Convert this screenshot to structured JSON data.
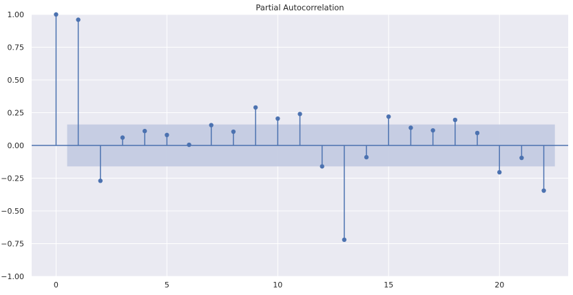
{
  "chart_data": {
    "type": "stem",
    "title": "Partial Autocorrelation",
    "xlabel": "",
    "ylabel": "",
    "xlim": [
      -1.1,
      23.1
    ],
    "ylim": [
      -1.0,
      1.0
    ],
    "xticks": [
      0,
      5,
      10,
      15,
      20
    ],
    "xtick_labels": [
      "0",
      "5",
      "10",
      "15",
      "20"
    ],
    "yticks": [
      -1.0,
      -0.75,
      -0.5,
      -0.25,
      0.0,
      0.25,
      0.5,
      0.75,
      1.0
    ],
    "ytick_labels": [
      "−1.00",
      "−0.75",
      "−0.50",
      "−0.25",
      "0.00",
      "0.25",
      "0.50",
      "0.75",
      "1.00"
    ],
    "grid": true,
    "confidence_band": {
      "x_start": 0.5,
      "x_end": 22.5,
      "lower": -0.16,
      "upper": 0.16
    },
    "x": [
      0,
      1,
      2,
      3,
      4,
      5,
      6,
      7,
      8,
      9,
      10,
      11,
      12,
      13,
      14,
      15,
      16,
      17,
      18,
      19,
      20,
      21,
      22
    ],
    "values": [
      1.0,
      0.96,
      -0.27,
      0.06,
      0.11,
      0.08,
      0.005,
      0.155,
      0.105,
      0.29,
      0.205,
      0.24,
      -0.16,
      -0.72,
      -0.09,
      0.22,
      0.135,
      0.115,
      0.195,
      0.095,
      -0.205,
      -0.095,
      -0.345
    ],
    "colors": {
      "plot_bg": "#eaeaf2",
      "grid": "#ffffff",
      "stem": "#4c72b0",
      "band": "#c4cbe2",
      "zero_line": "#4c72b0"
    }
  }
}
